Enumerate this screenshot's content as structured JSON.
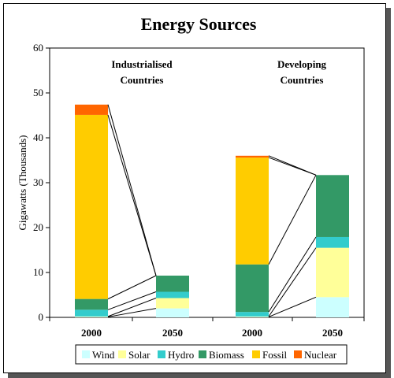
{
  "chart_data": {
    "type": "bar",
    "stacked": true,
    "title": "Energy Sources",
    "xlabel": "",
    "ylabel": "Gigawatts (Thousands)",
    "ylim": [
      0,
      60
    ],
    "yticks": [
      0,
      10,
      20,
      30,
      40,
      50,
      60
    ],
    "grid": false,
    "legend_position": "bottom",
    "groups": [
      {
        "label_line1": "Industrialised",
        "label_line2": "Countries",
        "categories": [
          "2000",
          "2050"
        ]
      },
      {
        "label_line1": "Developing",
        "label_line2": "Countries",
        "categories": [
          "2000",
          "2050"
        ]
      }
    ],
    "categories": [
      "2000",
      "2050",
      "2000",
      "2050"
    ],
    "series": [
      {
        "name": "Wind",
        "color": "#ccffff",
        "values": [
          0.1,
          2.0,
          0.1,
          4.5
        ]
      },
      {
        "name": "Solar",
        "color": "#ffff99",
        "values": [
          0.1,
          2.3,
          0.1,
          11.0
        ]
      },
      {
        "name": "Hydro",
        "color": "#33cccc",
        "values": [
          1.5,
          1.4,
          1.0,
          2.4
        ]
      },
      {
        "name": "Biomass",
        "color": "#339966",
        "values": [
          2.4,
          3.6,
          10.6,
          13.8
        ]
      },
      {
        "name": "Fossil",
        "color": "#ffcc00",
        "values": [
          41.0,
          0,
          23.8,
          0
        ]
      },
      {
        "name": "Nuclear",
        "color": "#ff6600",
        "values": [
          2.3,
          0,
          0.4,
          0
        ]
      }
    ],
    "connector_lines": true
  }
}
